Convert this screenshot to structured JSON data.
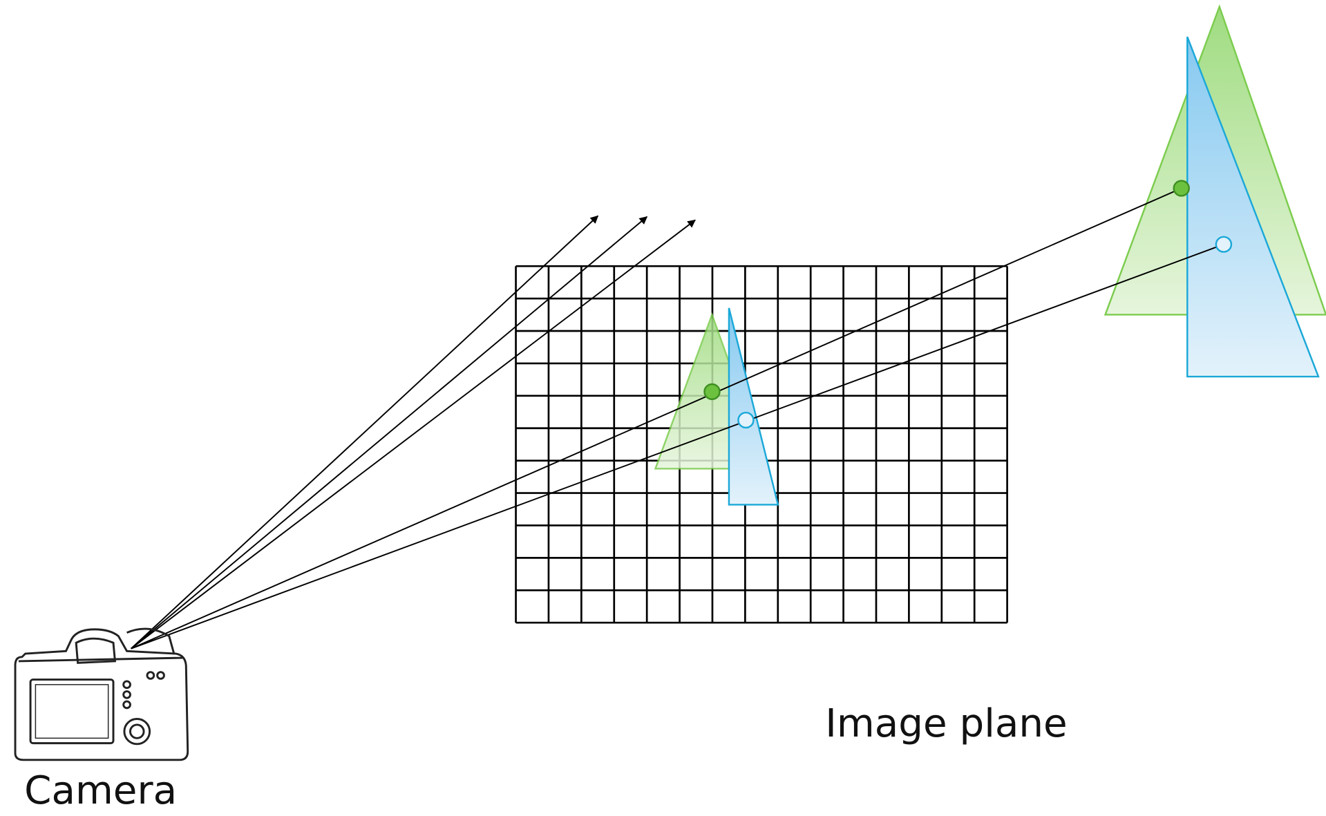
{
  "labels": {
    "camera": "Camera",
    "image_plane": "Image plane"
  }
}
